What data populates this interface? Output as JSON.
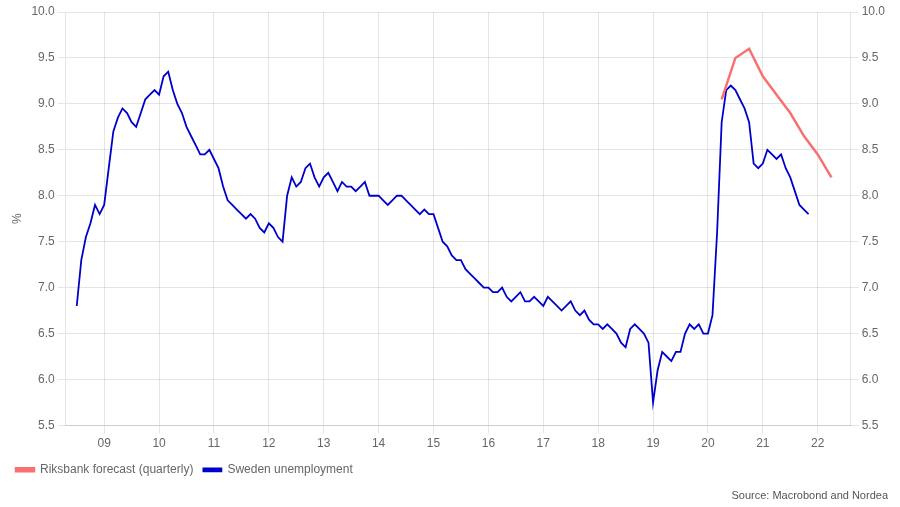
{
  "chart_data": {
    "type": "line",
    "ylabel": "%",
    "annotations": [
      "Source: Macrobond and Nordea"
    ],
    "xlim": [
      2008.3,
      2022.6
    ],
    "xticks": [
      {
        "value": 2009,
        "label": "09"
      },
      {
        "value": 2010,
        "label": "10"
      },
      {
        "value": 2011,
        "label": "11"
      },
      {
        "value": 2012,
        "label": "12"
      },
      {
        "value": 2013,
        "label": "13"
      },
      {
        "value": 2014,
        "label": "14"
      },
      {
        "value": 2015,
        "label": "15"
      },
      {
        "value": 2016,
        "label": "16"
      },
      {
        "value": 2017,
        "label": "17"
      },
      {
        "value": 2018,
        "label": "18"
      },
      {
        "value": 2019,
        "label": "19"
      },
      {
        "value": 2020,
        "label": "20"
      },
      {
        "value": 2021,
        "label": "21"
      },
      {
        "value": 2022,
        "label": "22"
      }
    ],
    "ylim": [
      5.5,
      10.0
    ],
    "yticks": [
      5.5,
      {
        "value": 6.0,
        "label": "6.0"
      },
      6.5,
      {
        "value": 7.0,
        "label": "7.0"
      },
      7.5,
      {
        "value": 8.0,
        "label": "8.0"
      },
      8.5,
      {
        "value": 9.0,
        "label": "9.0"
      },
      9.5,
      {
        "value": 10.0,
        "label": "10.0"
      }
    ],
    "y2lim": [
      5.5,
      10.0
    ],
    "y2ticks": [
      5.5,
      {
        "value": 6.0,
        "label": "6.0"
      },
      6.5,
      {
        "value": 7.0,
        "label": "7.0"
      },
      7.5,
      {
        "value": 8.0,
        "label": "8.0"
      },
      8.5,
      {
        "value": 9.0,
        "label": "9.0"
      },
      9.5,
      {
        "value": 10.0,
        "label": "10.0"
      }
    ],
    "grid": true,
    "legend": "lower left",
    "series": [
      {
        "name": "Sweden unemployment",
        "color": "#0000cc",
        "x": [
          2008.5,
          2008.583,
          2008.667,
          2008.75,
          2008.833,
          2008.917,
          2009.0,
          2009.083,
          2009.167,
          2009.25,
          2009.333,
          2009.417,
          2009.5,
          2009.583,
          2009.667,
          2009.75,
          2009.833,
          2009.917,
          2010.0,
          2010.083,
          2010.167,
          2010.25,
          2010.333,
          2010.417,
          2010.5,
          2010.583,
          2010.667,
          2010.75,
          2010.833,
          2010.917,
          2011.0,
          2011.083,
          2011.167,
          2011.25,
          2011.333,
          2011.417,
          2011.5,
          2011.583,
          2011.667,
          2011.75,
          2011.833,
          2011.917,
          2012.0,
          2012.083,
          2012.167,
          2012.25,
          2012.333,
          2012.417,
          2012.5,
          2012.583,
          2012.667,
          2012.75,
          2012.833,
          2012.917,
          2013.0,
          2013.083,
          2013.167,
          2013.25,
          2013.333,
          2013.417,
          2013.5,
          2013.583,
          2013.667,
          2013.75,
          2013.833,
          2013.917,
          2014.0,
          2014.083,
          2014.167,
          2014.25,
          2014.333,
          2014.417,
          2014.5,
          2014.583,
          2014.667,
          2014.75,
          2014.833,
          2014.917,
          2015.0,
          2015.083,
          2015.167,
          2015.25,
          2015.333,
          2015.417,
          2015.5,
          2015.583,
          2015.667,
          2015.75,
          2015.833,
          2015.917,
          2016.0,
          2016.083,
          2016.167,
          2016.25,
          2016.333,
          2016.417,
          2016.5,
          2016.583,
          2016.667,
          2016.75,
          2016.833,
          2016.917,
          2017.0,
          2017.083,
          2017.167,
          2017.25,
          2017.333,
          2017.417,
          2017.5,
          2017.583,
          2017.667,
          2017.75,
          2017.833,
          2017.917,
          2018.0,
          2018.083,
          2018.167,
          2018.25,
          2018.333,
          2018.417,
          2018.5,
          2018.583,
          2018.667,
          2018.75,
          2018.833,
          2018.917,
          2019.0,
          2019.083,
          2019.167,
          2019.25,
          2019.333,
          2019.417,
          2019.5,
          2019.583,
          2019.667,
          2019.75,
          2019.833,
          2019.917,
          2020.0,
          2020.083,
          2020.167,
          2020.25,
          2020.333,
          2020.417,
          2020.5,
          2020.583,
          2020.667,
          2020.75,
          2020.833,
          2020.917,
          2021.0,
          2021.083,
          2021.167,
          2021.25,
          2021.333,
          2021.417,
          2021.5,
          2021.583,
          2021.667,
          2021.75,
          2021.833
        ],
        "values": [
          6.8,
          7.3,
          7.55,
          7.7,
          7.9,
          7.8,
          7.9,
          8.3,
          8.7,
          8.85,
          8.95,
          8.9,
          8.8,
          8.75,
          8.9,
          9.05,
          9.1,
          9.15,
          9.1,
          9.3,
          9.35,
          9.15,
          9.0,
          8.9,
          8.75,
          8.65,
          8.55,
          8.45,
          8.45,
          8.5,
          8.4,
          8.3,
          8.1,
          7.95,
          7.9,
          7.85,
          7.8,
          7.75,
          7.8,
          7.75,
          7.65,
          7.6,
          7.7,
          7.65,
          7.55,
          7.5,
          8.0,
          8.2,
          8.1,
          8.15,
          8.3,
          8.35,
          8.2,
          8.1,
          8.2,
          8.25,
          8.15,
          8.05,
          8.15,
          8.1,
          8.1,
          8.05,
          8.1,
          8.15,
          8.0,
          8.0,
          8.0,
          7.95,
          7.9,
          7.95,
          8.0,
          8.0,
          7.95,
          7.9,
          7.85,
          7.8,
          7.85,
          7.8,
          7.8,
          7.65,
          7.5,
          7.45,
          7.35,
          7.3,
          7.3,
          7.2,
          7.15,
          7.1,
          7.05,
          7.0,
          7.0,
          6.95,
          6.95,
          7.0,
          6.9,
          6.85,
          6.9,
          6.95,
          6.85,
          6.85,
          6.9,
          6.85,
          6.8,
          6.9,
          6.85,
          6.8,
          6.75,
          6.8,
          6.85,
          6.75,
          6.7,
          6.75,
          6.65,
          6.6,
          6.6,
          6.55,
          6.6,
          6.55,
          6.5,
          6.4,
          6.35,
          6.55,
          6.6,
          6.55,
          6.5,
          6.4,
          5.75,
          6.1,
          6.3,
          6.25,
          6.2,
          6.3,
          6.3,
          6.5,
          6.6,
          6.55,
          6.6,
          6.5,
          6.5,
          6.7,
          7.6,
          8.8,
          9.15,
          9.2,
          9.15,
          9.05,
          8.95,
          8.8,
          8.35,
          8.3,
          8.35,
          8.5,
          8.45,
          8.4,
          8.45,
          8.3,
          8.2,
          8.05,
          7.9,
          7.85,
          7.8
        ]
      },
      {
        "name": "Riksbank forecast (quarterly)",
        "color": "#f87171",
        "x": [
          2020.25,
          2020.5,
          2020.75,
          2021.0,
          2021.25,
          2021.5,
          2021.75,
          2022.0,
          2022.25
        ],
        "values": [
          9.05,
          9.5,
          9.6,
          9.3,
          9.1,
          8.9,
          8.65,
          8.45,
          8.2
        ]
      }
    ]
  }
}
